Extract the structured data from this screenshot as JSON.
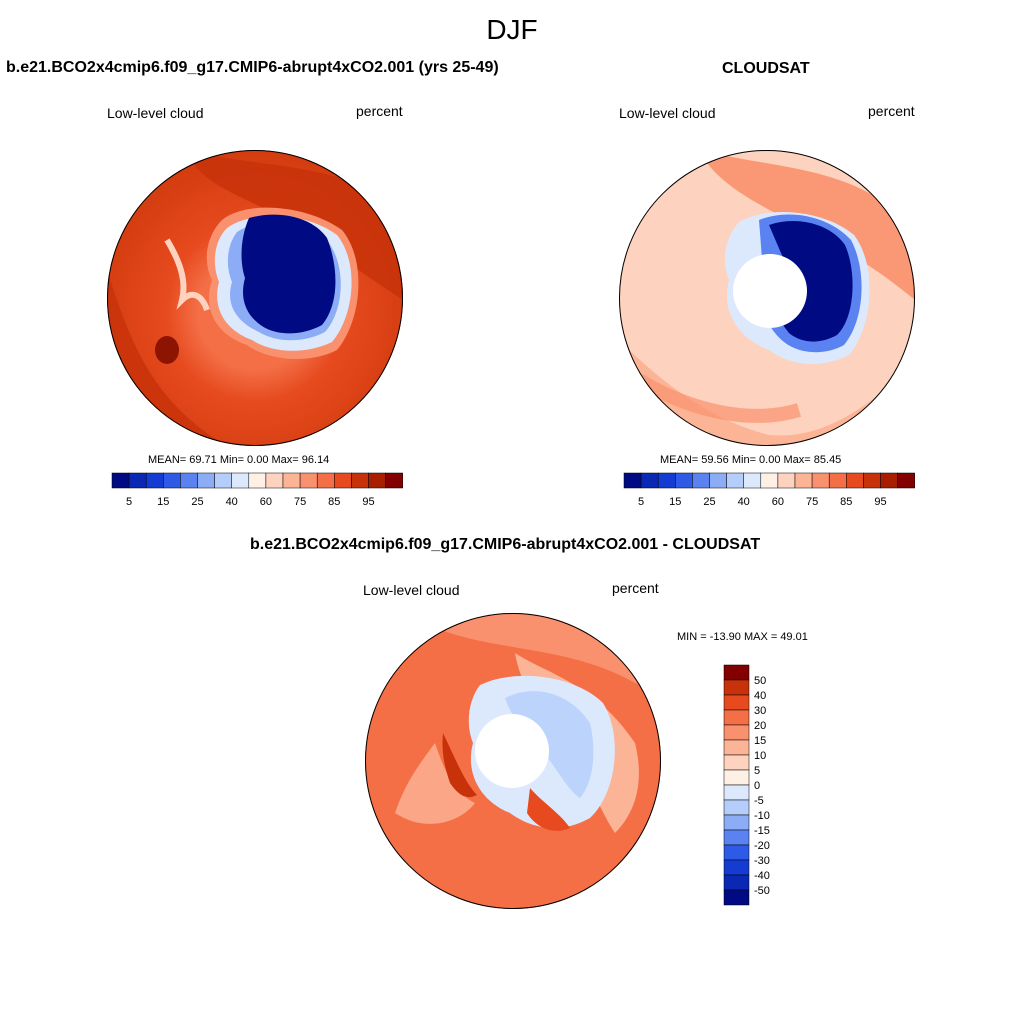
{
  "figure": {
    "season": "DJF"
  },
  "panels": [
    {
      "title": "b.e21.BCO2x4cmip6.f09_g17.CMIP6-abrupt4xCO2.001 (yrs 25-49)",
      "variable": "Low-level cloud",
      "units": "percent",
      "stats_text": "MEAN=  69.71  Min=   0.00  Max=  96.14",
      "stats": {
        "mean": 69.71,
        "min": 0.0,
        "max": 96.14
      }
    },
    {
      "title": "CLOUDSAT",
      "variable": "Low-level cloud",
      "units": "percent",
      "stats_text": "MEAN=  59.56  Min=   0.00  Max=  85.45",
      "stats": {
        "mean": 59.56,
        "min": 0.0,
        "max": 85.45
      }
    },
    {
      "title": "b.e21.BCO2x4cmip6.f09_g17.CMIP6-abrupt4xCO2.001 - CLOUDSAT",
      "variable": "Low-level cloud",
      "units": "percent",
      "stats_text": "MIN = -13.90 MAX =  49.01",
      "stats": {
        "min": -13.9,
        "max": 49.01
      }
    }
  ],
  "colorbars": {
    "abs": {
      "colors": [
        "#000a82",
        "#0a28b4",
        "#143cd2",
        "#2d5ae6",
        "#5a82f0",
        "#8cadf5",
        "#b4cdfa",
        "#dce9fd",
        "#fff0e6",
        "#fdd2be",
        "#fcb497",
        "#fa916e",
        "#f46e46",
        "#e64a1e",
        "#c8320a",
        "#aa1e00",
        "#820000"
      ],
      "tick_labels": [
        "5",
        "15",
        "25",
        "40",
        "60",
        "75",
        "85",
        "95"
      ]
    },
    "diff": {
      "colors": [
        "#000a82",
        "#0a28b4",
        "#143cd2",
        "#2d5ae6",
        "#5a82f0",
        "#8cadf5",
        "#b4cdfa",
        "#dce9fd",
        "#fff0e6",
        "#fdd2be",
        "#fcb497",
        "#fa916e",
        "#f46e46",
        "#e64a1e",
        "#c8320a",
        "#820000"
      ],
      "tick_labels": [
        "50",
        "40",
        "30",
        "20",
        "15",
        "10",
        "5",
        "0",
        "-5",
        "-10",
        "-15",
        "-20",
        "-30",
        "-40",
        "-50"
      ]
    }
  }
}
